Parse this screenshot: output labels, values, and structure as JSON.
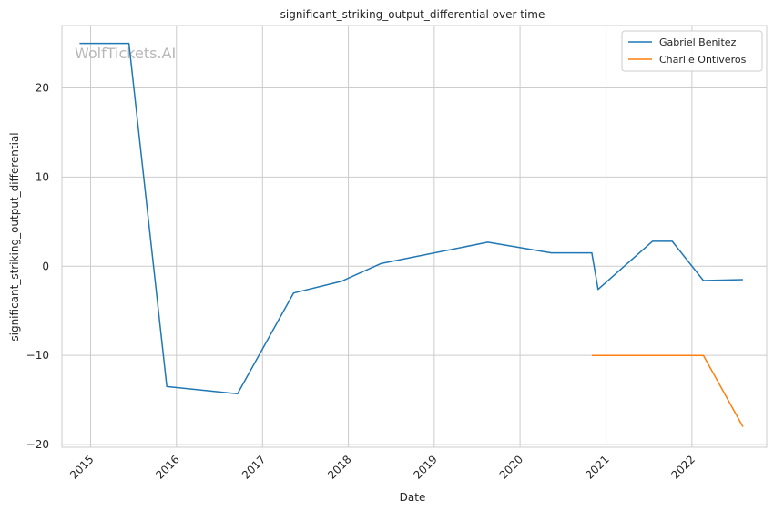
{
  "watermark": "WolfTickets.AI",
  "chart_data": {
    "type": "line",
    "title": "significant_striking_output_differential over time",
    "xlabel": "Date",
    "ylabel": "significant_striking_output_differential",
    "x_tick_labels": [
      "2015",
      "2016",
      "2017",
      "2018",
      "2019",
      "2020",
      "2021",
      "2022"
    ],
    "y_tick_labels": [
      "−20",
      "−10",
      "0",
      "10",
      "20"
    ],
    "y_ticks": [
      -20,
      -10,
      0,
      10,
      20
    ],
    "xlim": [
      "2014-09-01",
      "2022-11-15"
    ],
    "ylim": [
      -20.3,
      27
    ],
    "grid": true,
    "legend_position": "top-right",
    "series": [
      {
        "name": "Gabriel Benitez",
        "color": "#1f77b4",
        "x": [
          "2014-11-15",
          "2015-06-13",
          "2015-11-21",
          "2016-09-17",
          "2017-05-13",
          "2017-12-02",
          "2018-05-19",
          "2019-08-17",
          "2020-05-13",
          "2020-11-01",
          "2020-11-28",
          "2021-07-17",
          "2021-10-09",
          "2022-02-19",
          "2022-08-06"
        ],
        "y": [
          25,
          25,
          -13.5,
          -14.3,
          -3,
          -1.7,
          0.3,
          2.7,
          1.5,
          1.5,
          -2.6,
          2.8,
          2.8,
          -1.6,
          -1.5
        ]
      },
      {
        "name": "Charlie Ontiveros",
        "color": "#ff7f0e",
        "x": [
          "2020-11-01",
          "2022-02-19",
          "2022-08-06"
        ],
        "y": [
          -10,
          -10,
          -18
        ]
      }
    ]
  }
}
